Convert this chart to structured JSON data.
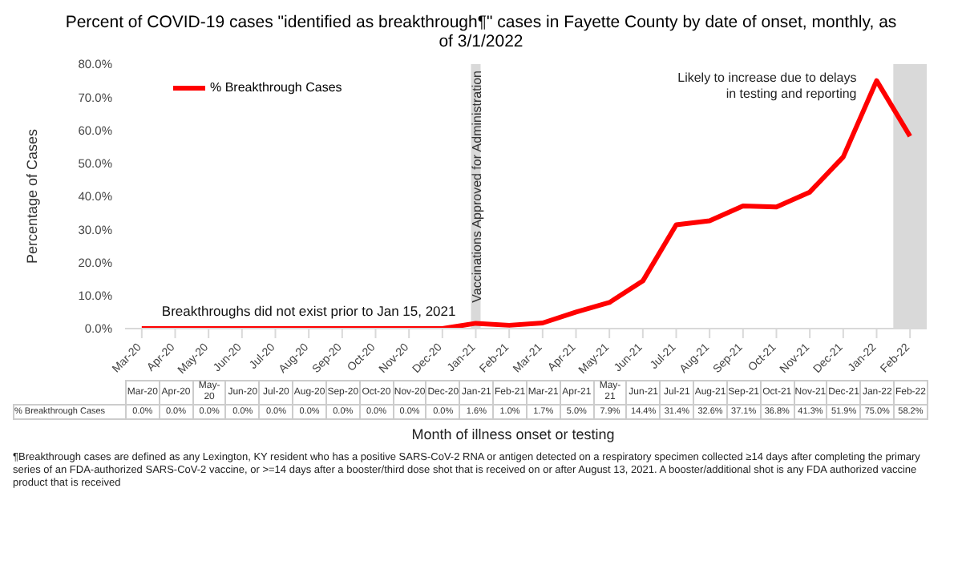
{
  "chart_data": {
    "type": "line",
    "title": "Percent of COVID-19 cases \"identified as breakthrough¶\" cases in Fayette County by date of onset, monthly, as of 3/1/2022",
    "xlabel": "Month of illness onset or testing",
    "ylabel": "Percentage of Cases",
    "categories": [
      "Mar-20",
      "Apr-20",
      "May-20",
      "Jun-20",
      "Jul-20",
      "Aug-20",
      "Sep-20",
      "Oct-20",
      "Nov-20",
      "Dec-20",
      "Jan-21",
      "Feb-21",
      "Mar-21",
      "Apr-21",
      "May-21",
      "Jun-21",
      "Jul-21",
      "Aug-21",
      "Sep-21",
      "Oct-21",
      "Nov-21",
      "Dec-21",
      "Jan-22",
      "Feb-22"
    ],
    "series": [
      {
        "name": "% Breakthrough Cases",
        "color": "#ff0000",
        "values": [
          0,
          0,
          0,
          0,
          0,
          0,
          0,
          0,
          0,
          0,
          1.6,
          1.0,
          1.7,
          5.0,
          7.9,
          14.4,
          31.4,
          32.6,
          37.1,
          36.8,
          41.3,
          51.9,
          75.0,
          58.2
        ],
        "value_labels": [
          "0.0%",
          "0.0%",
          "0.0%",
          "0.0%",
          "0.0%",
          "0.0%",
          "0.0%",
          "0.0%",
          "0.0%",
          "0.0%",
          "1.6%",
          "1.0%",
          "1.7%",
          "5.0%",
          "7.9%",
          "14.4%",
          "31.4%",
          "32.6%",
          "37.1%",
          "36.8%",
          "41.3%",
          "51.9%",
          "75.0%",
          "58.2%"
        ]
      }
    ],
    "ylim": [
      0,
      80
    ],
    "yticks": [
      {
        "value": 0,
        "label": "0.0%"
      },
      {
        "value": 10,
        "label": "10.0%"
      },
      {
        "value": 20,
        "label": "20.0%"
      },
      {
        "value": 30,
        "label": "30.0%"
      },
      {
        "value": 40,
        "label": "40.0%"
      },
      {
        "value": 50,
        "label": "50.0%"
      },
      {
        "value": 60,
        "label": "60.0%"
      },
      {
        "value": 70,
        "label": "70.0%"
      },
      {
        "value": 80,
        "label": "80.0%"
      }
    ],
    "ref_lines": [
      {
        "axis": "x",
        "value": "Jan-21",
        "label": "Vaccinations Approved for Administration",
        "color": "#d9d9d9"
      }
    ],
    "bands": [
      {
        "axis": "x",
        "from": "Feb-22",
        "to": "Feb-22",
        "label": "Likely to increase due to delays in testing and reporting",
        "color": "#d9d9d9"
      }
    ],
    "annotations": [
      {
        "text": "Breakthroughs did not exist prior to Jan 15, 2021",
        "x": "Aug-20",
        "y": 1.5
      },
      "¶Breakthrough cases are defined as any Lexington, KY resident who has a positive SARS-CoV-2 RNA or antigen detected on a respiratory specimen collected ≥14 days after completing the primary series of an FDA-authorized SARS-CoV-2 vaccine, or >=14 days after a booster/third dose shot that is received on or after August 13, 2021.  A booster/additional shot is any FDA authorized vaccine product that is received"
    ],
    "legend": "top left",
    "grid": false,
    "marker": "none",
    "line_style": "solid"
  }
}
